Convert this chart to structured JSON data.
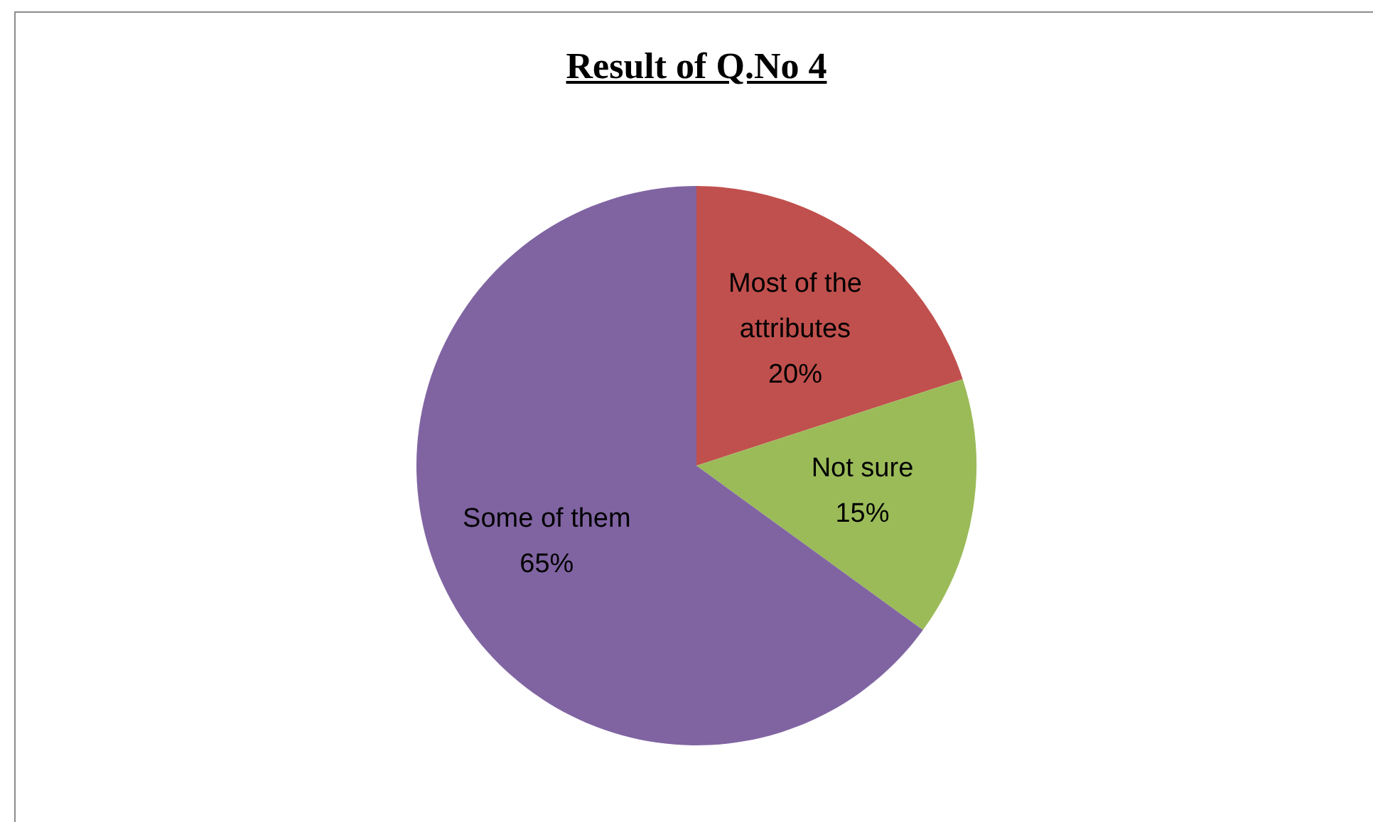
{
  "chart_data": {
    "type": "pie",
    "title": "Result of Q.No 4",
    "categories": [
      "Most of the attributes",
      "Not sure",
      "Some of them"
    ],
    "values": [
      20,
      15,
      65
    ],
    "colors": [
      "#c0504d",
      "#9bbb59",
      "#8064a2"
    ],
    "value_labels": [
      "20%",
      "15%",
      "65%"
    ],
    "legend": false
  }
}
